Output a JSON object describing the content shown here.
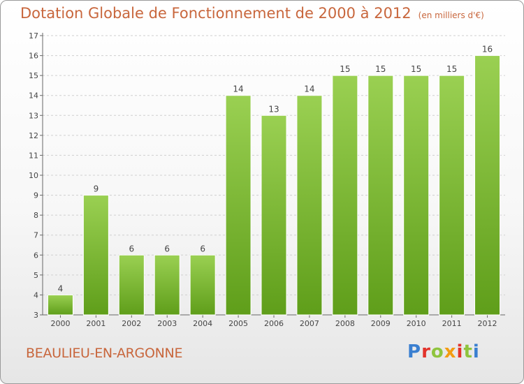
{
  "header": {
    "title": "Dotation Globale de Fonctionnement de 2000 à 2012",
    "subtitle": "(en milliers d'€)"
  },
  "footer": {
    "location": "BEAULIEU-EN-ARGONNE",
    "brand": "Proxiti",
    "brand_colors": [
      "#3a7fd0",
      "#e2332b",
      "#8fc43e",
      "#f39c12",
      "#e2332b",
      "#8fc43e",
      "#3a7fd0"
    ]
  },
  "colors": {
    "bar_top": "#9ad052",
    "bar_bottom": "#5f9e1a",
    "title": "#c8663c",
    "grid": "#cfcfcf"
  },
  "chart_data": {
    "type": "bar",
    "title": "Dotation Globale de Fonctionnement de 2000 à 2012",
    "subtitle": "(en milliers d'€)",
    "xlabel": "",
    "ylabel": "",
    "categories": [
      "2000",
      "2001",
      "2002",
      "2003",
      "2004",
      "2005",
      "2006",
      "2007",
      "2008",
      "2009",
      "2010",
      "2011",
      "2012"
    ],
    "values": [
      4,
      9,
      6,
      6,
      6,
      14,
      13,
      14,
      15,
      15,
      15,
      15,
      16
    ],
    "ylim": [
      3,
      17
    ],
    "yticks": [
      3,
      4,
      5,
      6,
      7,
      8,
      9,
      10,
      11,
      12,
      13,
      14,
      15,
      16,
      17
    ],
    "grid": true,
    "data_labels": true
  }
}
